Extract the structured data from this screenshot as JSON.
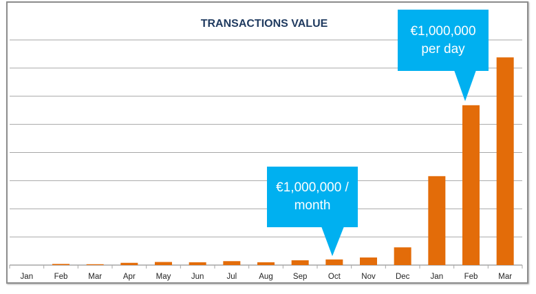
{
  "chart_data": {
    "type": "bar",
    "title": "TRANSACTIONS VALUE",
    "xlabel": "",
    "ylabel": "",
    "categories": [
      "Jan",
      "Feb",
      "Mar",
      "Apr",
      "May",
      "Jun",
      "Jul",
      "Aug",
      "Sep",
      "Oct",
      "Nov",
      "Dec",
      "Jan",
      "Feb",
      "Mar"
    ],
    "values": [
      0,
      0.04,
      0.03,
      0.08,
      0.11,
      0.1,
      0.14,
      0.1,
      0.17,
      0.2,
      0.27,
      0.63,
      3.16,
      5.68,
      7.38
    ],
    "ylim": [
      0,
      8
    ],
    "grid": true,
    "y_tick_labels_shown": false,
    "bar_color": "#e36c09",
    "annotations": [
      {
        "text_line1": "€1,000,000 /",
        "text_line2": "month",
        "category_index": 9
      },
      {
        "text_line1": "€1,000,000",
        "text_line2": "per day",
        "category_index": 13
      }
    ],
    "annotation_color": "#00b0f0"
  }
}
